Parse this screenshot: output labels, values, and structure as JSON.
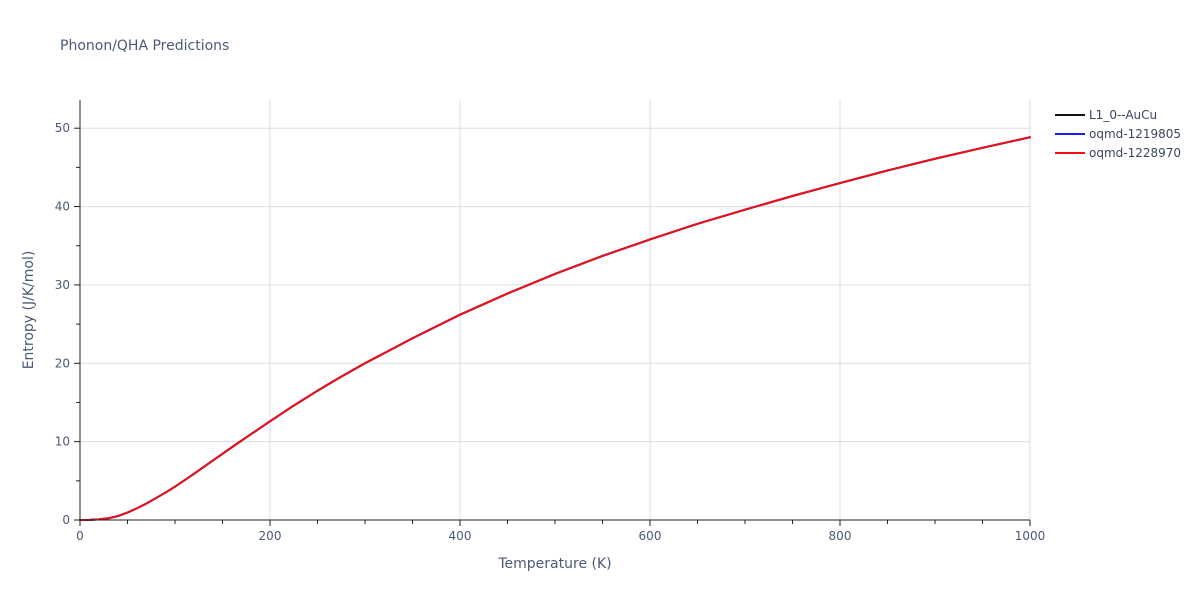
{
  "chart_data": {
    "type": "line",
    "title": "Phonon/QHA Predictions",
    "xlabel": "Temperature (K)",
    "ylabel": "Entropy (J/K/mol)",
    "xlim": [
      0,
      1000
    ],
    "ylim": [
      0,
      53.6
    ],
    "xticks": [
      0,
      200,
      400,
      600,
      800,
      1000
    ],
    "yticks": [
      0,
      10,
      20,
      30,
      40,
      50
    ],
    "grid": true,
    "legend_position": "top-right",
    "x": [
      0,
      10,
      20,
      30,
      40,
      50,
      60,
      70,
      80,
      90,
      100,
      120,
      140,
      160,
      180,
      200,
      225,
      250,
      275,
      300,
      350,
      400,
      450,
      500,
      550,
      600,
      650,
      700,
      750,
      800,
      850,
      900,
      950,
      1000
    ],
    "series": [
      {
        "name": "L1_0--AuCu",
        "color": "#111111",
        "values": [
          0,
          0.02,
          0.08,
          0.22,
          0.5,
          0.95,
          1.5,
          2.1,
          2.8,
          3.5,
          4.25,
          5.9,
          7.6,
          9.3,
          10.95,
          12.6,
          14.6,
          16.5,
          18.3,
          20.0,
          23.2,
          26.2,
          28.9,
          31.4,
          33.7,
          35.8,
          37.8,
          39.6,
          41.35,
          43.0,
          44.6,
          46.1,
          47.5,
          48.85
        ]
      },
      {
        "name": "oqmd-1219805",
        "color": "#1a1aff",
        "values": [
          0,
          0.02,
          0.08,
          0.22,
          0.5,
          0.95,
          1.5,
          2.1,
          2.8,
          3.5,
          4.25,
          5.9,
          7.6,
          9.3,
          10.95,
          12.6,
          14.6,
          16.5,
          18.3,
          20.0,
          23.2,
          26.2,
          28.9,
          31.4,
          33.7,
          35.8,
          37.8,
          39.6,
          41.35,
          43.0,
          44.6,
          46.1,
          47.5,
          48.85
        ]
      },
      {
        "name": "oqmd-1228970",
        "color": "#ee1111",
        "values": [
          0,
          0.02,
          0.08,
          0.22,
          0.5,
          0.95,
          1.5,
          2.1,
          2.8,
          3.5,
          4.25,
          5.9,
          7.6,
          9.3,
          10.95,
          12.6,
          14.6,
          16.5,
          18.3,
          20.0,
          23.2,
          26.2,
          28.9,
          31.4,
          33.7,
          35.8,
          37.8,
          39.6,
          41.35,
          43.0,
          44.6,
          46.1,
          47.5,
          48.85
        ]
      }
    ]
  }
}
